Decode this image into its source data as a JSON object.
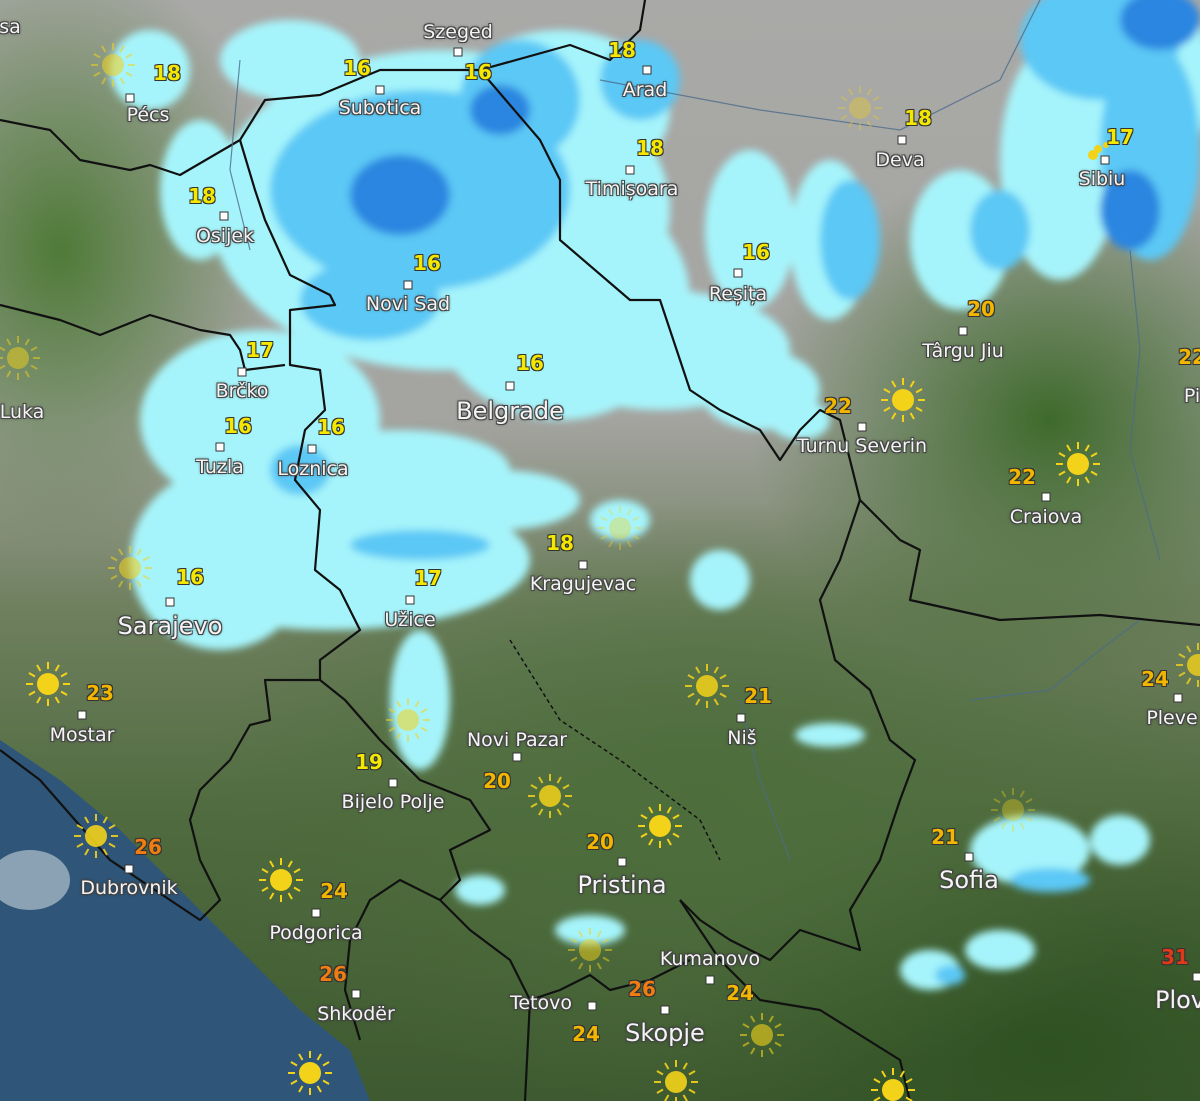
{
  "colors": {
    "temp_cool": "#f5e800",
    "temp_mild": "#f2b500",
    "temp_warm": "#f07c12",
    "temp_hot": "#e2381a",
    "rain_light": "#a6f4fb",
    "rain_medium": "#5bc8f5",
    "rain_heavy": "#2a86e0",
    "sea": "#2f5678",
    "border": "#111111",
    "sun": "#f3d21a"
  },
  "cities": [
    {
      "name": "sa",
      "temp": null
    },
    {
      "name": "Pécs",
      "temp": "18"
    },
    {
      "name": "Szeged",
      "temp": "16"
    },
    {
      "name": "Subotica",
      "temp": "16"
    },
    {
      "name": "Arad",
      "temp": "18"
    },
    {
      "name": "Deva",
      "temp": "18"
    },
    {
      "name": "Sibiu",
      "temp": "17"
    },
    {
      "name": "Timișoara",
      "temp": "18"
    },
    {
      "name": "Osijek",
      "temp": "18"
    },
    {
      "name": "Novi Sad",
      "temp": "16"
    },
    {
      "name": "Reșița",
      "temp": "16"
    },
    {
      "name": "Târgu Jiu",
      "temp": "20"
    },
    {
      "name": "Pi",
      "temp": "22"
    },
    {
      "name": "Luka",
      "temp": null
    },
    {
      "name": "Brčko",
      "temp": "17"
    },
    {
      "name": "Belgrade",
      "temp": "16"
    },
    {
      "name": "Tuzla",
      "temp": "16"
    },
    {
      "name": "Loznica",
      "temp": "16"
    },
    {
      "name": "Turnu Severin",
      "temp": "22"
    },
    {
      "name": "Craiova",
      "temp": "22"
    },
    {
      "name": "Kragujevac",
      "temp": "18"
    },
    {
      "name": "Užice",
      "temp": "17"
    },
    {
      "name": "Sarajevo",
      "temp": "16"
    },
    {
      "name": "Mostar",
      "temp": "23"
    },
    {
      "name": "Niš",
      "temp": "21"
    },
    {
      "name": "Pleve",
      "temp": "24"
    },
    {
      "name": "Novi Pazar",
      "temp": "20"
    },
    {
      "name": "Bijelo Polje",
      "temp": "19"
    },
    {
      "name": "Pristina",
      "temp": "20"
    },
    {
      "name": "Sofia",
      "temp": "21"
    },
    {
      "name": "Dubrovnik",
      "temp": "26"
    },
    {
      "name": "Podgorica",
      "temp": "24"
    },
    {
      "name": "Shkodër",
      "temp": "26"
    },
    {
      "name": "Kumanovo",
      "temp": "24"
    },
    {
      "name": "Tetovo",
      "temp": "24"
    },
    {
      "name": "Skopje",
      "temp": "26"
    },
    {
      "name": "Plov",
      "temp": "31"
    }
  ],
  "weather_icons": {
    "sun": "sun-icon",
    "rain": "rain-drops-icon"
  }
}
